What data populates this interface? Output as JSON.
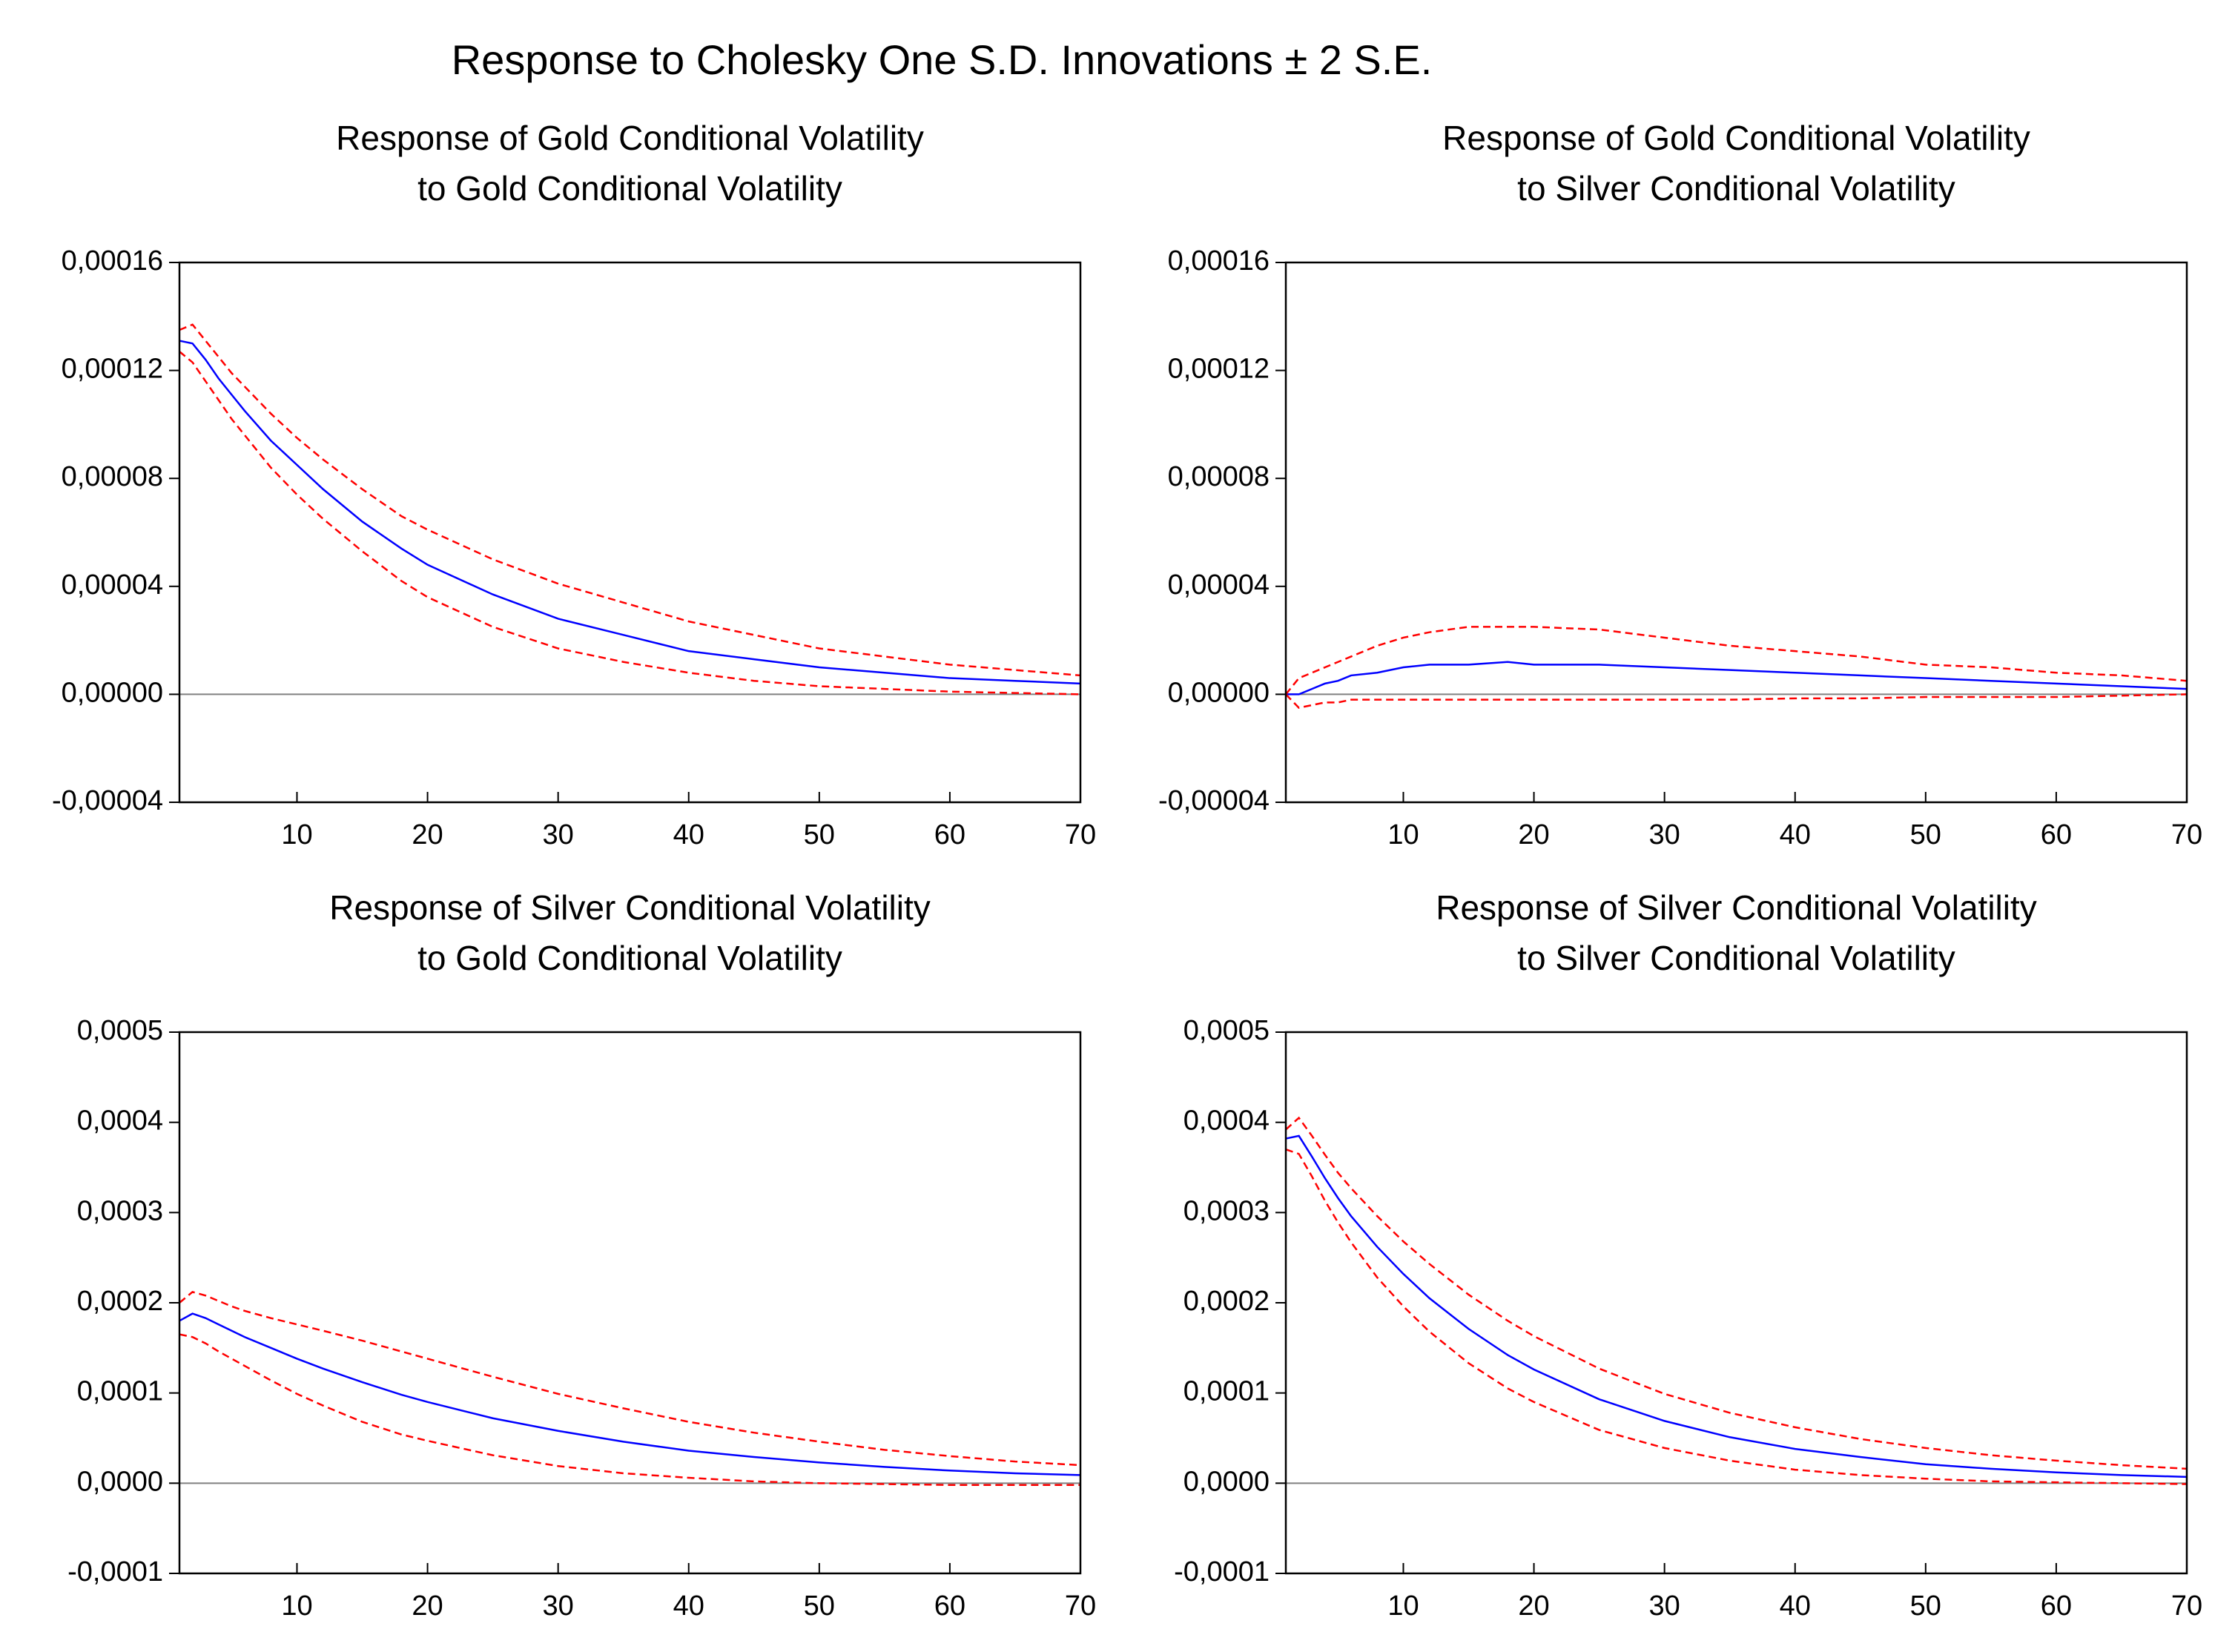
{
  "title": "Response to Cholesky One S.D. Innovations ± 2 S.E.",
  "chart_data": [
    {
      "type": "line",
      "title": [
        "Response of Gold Conditional Volatility",
        "to Gold Conditional Volatility"
      ],
      "x": [
        1,
        2,
        3,
        4,
        5,
        6,
        8,
        10,
        12,
        15,
        18,
        20,
        25,
        30,
        35,
        40,
        45,
        50,
        55,
        60,
        65,
        70
      ],
      "xlim": [
        1,
        70
      ],
      "xticks": [
        10,
        20,
        30,
        40,
        50,
        60,
        70
      ],
      "ylim": [
        -4e-05,
        0.00016
      ],
      "yticks": [
        {
          "value": -4e-05,
          "label": "-0,00004"
        },
        {
          "value": 0,
          "label": "0,00000"
        },
        {
          "value": 4e-05,
          "label": "0,00004"
        },
        {
          "value": 8e-05,
          "label": "0,00008"
        },
        {
          "value": 0.00012,
          "label": "0,00012"
        },
        {
          "value": 0.00016,
          "label": "0,00016"
        }
      ],
      "zero_line": true,
      "series": [
        {
          "color": "#0000ff",
          "dashed": false,
          "values": [
            0.000131,
            0.00013,
            0.000124,
            0.000117,
            0.000111,
            0.000105,
            9.4e-05,
            8.5e-05,
            7.6e-05,
            6.4e-05,
            5.4e-05,
            4.8e-05,
            3.7e-05,
            2.8e-05,
            2.2e-05,
            1.6e-05,
            1.3e-05,
            1e-05,
            8e-06,
            6e-06,
            5e-06,
            4e-06
          ]
        },
        {
          "color": "#ff0000",
          "dashed": true,
          "values": [
            0.000135,
            0.000137,
            0.000131,
            0.000125,
            0.000119,
            0.000114,
            0.000104,
            9.5e-05,
            8.7e-05,
            7.6e-05,
            6.6e-05,
            6.1e-05,
            5e-05,
            4.1e-05,
            3.4e-05,
            2.7e-05,
            2.2e-05,
            1.7e-05,
            1.4e-05,
            1.1e-05,
            9e-06,
            7e-06
          ]
        },
        {
          "color": "#ff0000",
          "dashed": true,
          "values": [
            0.000127,
            0.000123,
            0.000116,
            0.000109,
            0.000102,
            9.6e-05,
            8.4e-05,
            7.4e-05,
            6.5e-05,
            5.3e-05,
            4.2e-05,
            3.6e-05,
            2.5e-05,
            1.7e-05,
            1.2e-05,
            8e-06,
            5e-06,
            3e-06,
            2e-06,
            1e-06,
            5e-07,
            0
          ]
        }
      ]
    },
    {
      "type": "line",
      "title": [
        "Response of Gold Conditional Volatility",
        "to Silver Conditional Volatility"
      ],
      "x": [
        1,
        2,
        3,
        4,
        5,
        6,
        8,
        10,
        12,
        15,
        18,
        20,
        25,
        30,
        35,
        40,
        45,
        50,
        55,
        60,
        65,
        70
      ],
      "xlim": [
        1,
        70
      ],
      "xticks": [
        10,
        20,
        30,
        40,
        50,
        60,
        70
      ],
      "ylim": [
        -4e-05,
        0.00016
      ],
      "yticks": [
        {
          "value": -4e-05,
          "label": "-0,00004"
        },
        {
          "value": 0,
          "label": "0,00000"
        },
        {
          "value": 4e-05,
          "label": "0,00004"
        },
        {
          "value": 8e-05,
          "label": "0,00008"
        },
        {
          "value": 0.00012,
          "label": "0,00012"
        },
        {
          "value": 0.00016,
          "label": "0,00016"
        }
      ],
      "zero_line": true,
      "series": [
        {
          "color": "#0000ff",
          "dashed": false,
          "values": [
            0,
            0,
            2e-06,
            4e-06,
            5e-06,
            7e-06,
            8e-06,
            1e-05,
            1.1e-05,
            1.1e-05,
            1.2e-05,
            1.1e-05,
            1.1e-05,
            1e-05,
            9e-06,
            8e-06,
            7e-06,
            6e-06,
            5e-06,
            4e-06,
            3e-06,
            2e-06
          ]
        },
        {
          "color": "#ff0000",
          "dashed": true,
          "values": [
            0,
            6e-06,
            8e-06,
            1e-05,
            1.2e-05,
            1.4e-05,
            1.8e-05,
            2.1e-05,
            2.3e-05,
            2.5e-05,
            2.5e-05,
            2.5e-05,
            2.4e-05,
            2.1e-05,
            1.8e-05,
            1.6e-05,
            1.4e-05,
            1.1e-05,
            1e-05,
            8e-06,
            7e-06,
            5e-06
          ]
        },
        {
          "color": "#ff0000",
          "dashed": true,
          "values": [
            0,
            -5e-06,
            -4e-06,
            -3e-06,
            -3e-06,
            -2e-06,
            -2e-06,
            -2e-06,
            -2e-06,
            -2e-06,
            -2e-06,
            -2e-06,
            -2e-06,
            -2e-06,
            -2e-06,
            -1.5e-06,
            -1.5e-06,
            -1e-06,
            -1e-06,
            -1e-06,
            -5e-07,
            0
          ]
        }
      ]
    },
    {
      "type": "line",
      "title": [
        "Response of Silver Conditional Volatility",
        "to Gold Conditional Volatility"
      ],
      "x": [
        1,
        2,
        3,
        4,
        5,
        6,
        8,
        10,
        12,
        15,
        18,
        20,
        25,
        30,
        35,
        40,
        45,
        50,
        55,
        60,
        65,
        70
      ],
      "xlim": [
        1,
        70
      ],
      "xticks": [
        10,
        20,
        30,
        40,
        50,
        60,
        70
      ],
      "ylim": [
        -0.0001,
        0.0005
      ],
      "yticks": [
        {
          "value": -0.0001,
          "label": "-0,0001"
        },
        {
          "value": 0,
          "label": "0,0000"
        },
        {
          "value": 0.0001,
          "label": "0,0001"
        },
        {
          "value": 0.0002,
          "label": "0,0002"
        },
        {
          "value": 0.0003,
          "label": "0,0003"
        },
        {
          "value": 0.0004,
          "label": "0,0004"
        },
        {
          "value": 0.0005,
          "label": "0,0005"
        }
      ],
      "zero_line": true,
      "series": [
        {
          "color": "#0000ff",
          "dashed": false,
          "values": [
            0.00018,
            0.000188,
            0.000183,
            0.000176,
            0.000169,
            0.000162,
            0.00015,
            0.000138,
            0.000127,
            0.000112,
            9.8e-05,
            9e-05,
            7.2e-05,
            5.8e-05,
            4.6e-05,
            3.6e-05,
            2.9e-05,
            2.3e-05,
            1.8e-05,
            1.4e-05,
            1.1e-05,
            9e-06
          ]
        },
        {
          "color": "#ff0000",
          "dashed": true,
          "values": [
            0.0002,
            0.000212,
            0.000208,
            0.000202,
            0.000196,
            0.000191,
            0.000183,
            0.000176,
            0.000169,
            0.000158,
            0.000146,
            0.000138,
            0.000118,
            9.9e-05,
            8.3e-05,
            6.8e-05,
            5.6e-05,
            4.6e-05,
            3.7e-05,
            3e-05,
            2.4e-05,
            2e-05
          ]
        },
        {
          "color": "#ff0000",
          "dashed": true,
          "values": [
            0.000165,
            0.000162,
            0.000155,
            0.000146,
            0.000138,
            0.00013,
            0.000114,
            9.9e-05,
            8.6e-05,
            6.8e-05,
            5.4e-05,
            4.7e-05,
            3.1e-05,
            1.9e-05,
            1.1e-05,
            6e-06,
            2e-06,
            0,
            -1e-06,
            -2e-06,
            -2e-06,
            -2e-06
          ]
        }
      ]
    },
    {
      "type": "line",
      "title": [
        "Response of Silver Conditional Volatility",
        "to Silver Conditional Volatility"
      ],
      "x": [
        1,
        2,
        3,
        4,
        5,
        6,
        8,
        10,
        12,
        15,
        18,
        20,
        25,
        30,
        35,
        40,
        45,
        50,
        55,
        60,
        65,
        70
      ],
      "xlim": [
        1,
        70
      ],
      "xticks": [
        10,
        20,
        30,
        40,
        50,
        60,
        70
      ],
      "ylim": [
        -0.0001,
        0.0005
      ],
      "yticks": [
        {
          "value": -0.0001,
          "label": "-0,0001"
        },
        {
          "value": 0,
          "label": "0,0000"
        },
        {
          "value": 0.0001,
          "label": "0,0001"
        },
        {
          "value": 0.0002,
          "label": "0,0002"
        },
        {
          "value": 0.0003,
          "label": "0,0003"
        },
        {
          "value": 0.0004,
          "label": "0,0004"
        },
        {
          "value": 0.0005,
          "label": "0,0005"
        }
      ],
      "zero_line": true,
      "series": [
        {
          "color": "#0000ff",
          "dashed": false,
          "values": [
            0.000382,
            0.000385,
            0.000362,
            0.000338,
            0.000316,
            0.000296,
            0.000262,
            0.000232,
            0.000205,
            0.000171,
            0.000142,
            0.000126,
            9.3e-05,
            6.9e-05,
            5.1e-05,
            3.8e-05,
            2.9e-05,
            2.1e-05,
            1.6e-05,
            1.2e-05,
            9e-06,
            7e-06
          ]
        },
        {
          "color": "#ff0000",
          "dashed": true,
          "values": [
            0.000392,
            0.000405,
            0.000385,
            0.000364,
            0.000344,
            0.000327,
            0.000296,
            0.000268,
            0.000243,
            0.000209,
            0.00018,
            0.000163,
            0.000127,
            9.9e-05,
            7.8e-05,
            6.2e-05,
            4.9e-05,
            3.9e-05,
            3.1e-05,
            2.5e-05,
            2e-05,
            1.6e-05
          ]
        },
        {
          "color": "#ff0000",
          "dashed": true,
          "values": [
            0.00037,
            0.000365,
            0.00034,
            0.000313,
            0.000289,
            0.000267,
            0.000228,
            0.000196,
            0.000168,
            0.000133,
            0.000105,
            9e-05,
            5.9e-05,
            3.9e-05,
            2.5e-05,
            1.5e-05,
            9e-06,
            5e-06,
            2e-06,
            1e-06,
            0,
            -1e-06
          ]
        }
      ]
    }
  ]
}
